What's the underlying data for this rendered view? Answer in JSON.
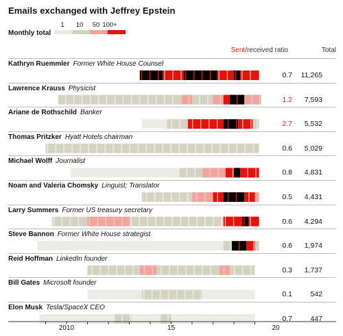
{
  "title": "Emails exchanged with Jeffrey Epstein",
  "legend": {
    "label": "Monthly total",
    "ticks": [
      "1",
      "10",
      "50",
      "100+"
    ],
    "colors": [
      "#ecece6",
      "#d4d3c1",
      "#f4a49c",
      "#e3120b"
    ]
  },
  "headers": {
    "sent_word": "Sent",
    "received_rest": "/received ratio",
    "total": "Total"
  },
  "chart_data": {
    "type": "heatmap",
    "title": "Emails exchanged with Jeffrey Epstein",
    "x_axis": {
      "min": 2008,
      "max": 2020,
      "ticks": [
        "2010",
        "15",
        "20"
      ],
      "tick_values": [
        2010,
        2015,
        2020
      ]
    },
    "color_scale": {
      "label": "Monthly total",
      "breaks": [
        1,
        10,
        50,
        100
      ]
    },
    "rows": [
      {
        "name": "Kathryn Ruemmler",
        "role": "Former White House Counsel",
        "ratio": "0.7",
        "total": "11,265",
        "segments": [
          [
            2013.5,
            2014.6,
            4
          ],
          [
            2014.6,
            2015.6,
            3
          ],
          [
            2015.6,
            2017.2,
            4
          ],
          [
            2017.2,
            2018.0,
            3
          ],
          [
            2018.0,
            2018.3,
            4
          ],
          [
            2018.3,
            2019.2,
            3
          ]
        ]
      },
      {
        "name": "Lawrence Krauss",
        "role": "Physicist",
        "ratio": "1.2",
        "total": "7,593",
        "segments": [
          [
            2009.6,
            2015.5,
            1
          ],
          [
            2015.5,
            2016.0,
            2
          ],
          [
            2016.0,
            2017.0,
            1
          ],
          [
            2017.0,
            2017.5,
            2
          ],
          [
            2017.5,
            2017.8,
            3
          ],
          [
            2017.8,
            2018.5,
            4
          ],
          [
            2018.5,
            2019.3,
            2
          ]
        ]
      },
      {
        "name": "Ariane de Rothschild",
        "role": "Banker",
        "ratio": "2.7",
        "total": "5,532",
        "segments": [
          [
            2013.6,
            2014.8,
            0
          ],
          [
            2014.8,
            2015.8,
            1
          ],
          [
            2015.8,
            2017.5,
            3
          ],
          [
            2017.5,
            2018.2,
            4
          ],
          [
            2018.2,
            2018.9,
            3
          ],
          [
            2018.9,
            2019.2,
            1
          ]
        ]
      },
      {
        "name": "Thomas Pritzker",
        "role": "Hyatt Hotels chairman",
        "ratio": "0.6",
        "total": "5,029",
        "segments": [
          [
            2009.0,
            2019.2,
            1
          ]
        ]
      },
      {
        "name": "Michael Wolff",
        "role": "Journalist",
        "ratio": "0.8",
        "total": "4,831",
        "segments": [
          [
            2010.2,
            2015.4,
            0
          ],
          [
            2015.4,
            2016.5,
            1
          ],
          [
            2016.5,
            2017.6,
            2
          ],
          [
            2017.6,
            2018.0,
            3
          ],
          [
            2018.0,
            2018.3,
            4
          ],
          [
            2018.3,
            2019.2,
            3
          ]
        ]
      },
      {
        "name": "Noam and Valeria Chomsky",
        "role": "Linguist; Translator",
        "ratio": "0.5",
        "total": "4,431",
        "segments": [
          [
            2013.6,
            2016.0,
            1
          ],
          [
            2016.0,
            2017.0,
            2
          ],
          [
            2017.0,
            2017.5,
            3
          ],
          [
            2017.5,
            2018.5,
            4
          ],
          [
            2018.5,
            2019.0,
            3
          ],
          [
            2019.0,
            2019.2,
            2
          ]
        ]
      },
      {
        "name": "Larry Summers",
        "role": "Former US treasury secretary",
        "ratio": "0.6",
        "total": "4,294",
        "segments": [
          [
            2009.3,
            2011.0,
            1
          ],
          [
            2011.0,
            2013.0,
            2
          ],
          [
            2013.0,
            2017.5,
            1
          ],
          [
            2017.5,
            2018.4,
            3
          ],
          [
            2018.4,
            2018.7,
            4
          ],
          [
            2018.7,
            2019.2,
            3
          ]
        ]
      },
      {
        "name": "Steve Bannon",
        "role": "Former White House strategist",
        "ratio": "0.6",
        "total": "1,974",
        "segments": [
          [
            2008.6,
            2011.0,
            0
          ],
          [
            2011.0,
            2017.5,
            0
          ],
          [
            2017.5,
            2017.9,
            1
          ],
          [
            2017.9,
            2018.6,
            4
          ],
          [
            2018.6,
            2019.0,
            3
          ],
          [
            2019.0,
            2019.2,
            1
          ]
        ]
      },
      {
        "name": "Reid Hoffman",
        "role": "LinkedIn founder",
        "ratio": "0.3",
        "total": "1,737",
        "segments": [
          [
            2011.0,
            2013.5,
            1
          ],
          [
            2013.5,
            2014.3,
            2
          ],
          [
            2014.3,
            2017.3,
            1
          ],
          [
            2017.3,
            2017.8,
            2
          ],
          [
            2017.8,
            2019.0,
            1
          ]
        ]
      },
      {
        "name": "Bill Gates",
        "role": "Microsoft founder",
        "ratio": "0.1",
        "total": "542",
        "segments": [
          [
            2011.0,
            2013.6,
            0
          ],
          [
            2013.6,
            2016.5,
            1
          ],
          [
            2016.5,
            2019.0,
            0
          ]
        ]
      },
      {
        "name": "Elon Musk",
        "role": "Tesla/SpaceX CEO",
        "ratio": "0.7",
        "total": "447",
        "segments": [
          [
            2008.7,
            2012.3,
            0
          ],
          [
            2012.3,
            2013.1,
            1
          ],
          [
            2013.1,
            2014.5,
            0
          ],
          [
            2014.5,
            2015.0,
            1
          ],
          [
            2015.0,
            2019.0,
            0
          ]
        ]
      }
    ]
  }
}
